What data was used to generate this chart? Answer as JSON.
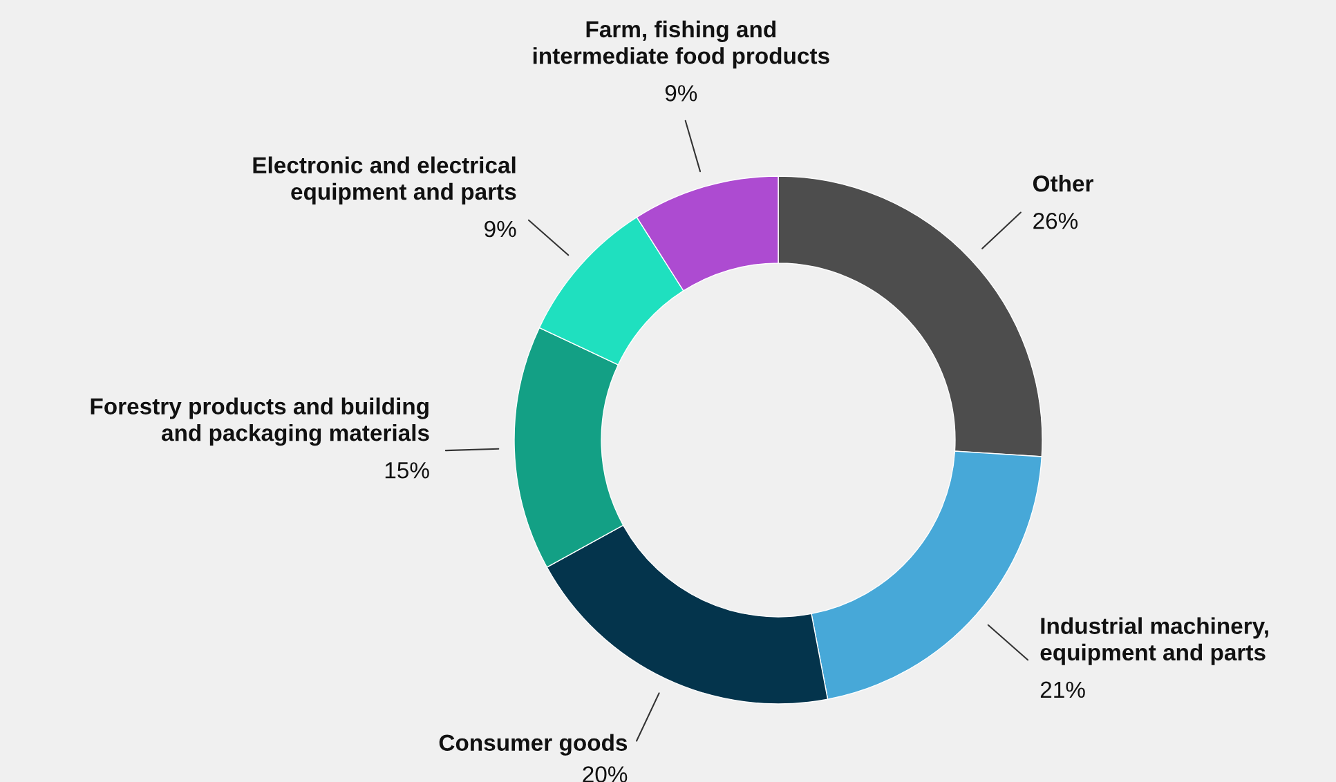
{
  "chart_data": {
    "type": "donut",
    "categories": [
      "Other",
      "Industrial machinery,\nequipment and parts",
      "Consumer goods",
      "Forestry products and building\nand packaging materials",
      "Electronic and electrical\nequipment and parts",
      "Farm, fishing and\nintermediate food products"
    ],
    "values": [
      26,
      21,
      20,
      15,
      9,
      9
    ],
    "colors": [
      "#4d4d4d",
      "#47a8d8",
      "#04344c",
      "#13a085",
      "#1fe0bf",
      "#ad4bd1"
    ],
    "value_labels": [
      "26%",
      "21%",
      "20%",
      "15%",
      "9%",
      "9%"
    ]
  }
}
